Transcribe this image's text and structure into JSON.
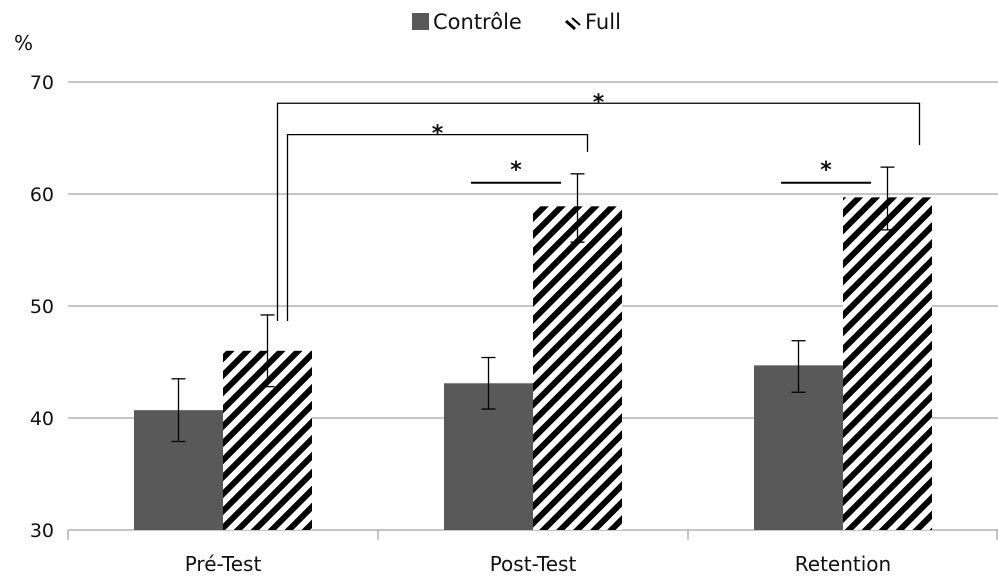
{
  "chart_data": {
    "type": "bar",
    "title": "",
    "xlabel": "",
    "ylabel": "%",
    "ylim": [
      30,
      70
    ],
    "yticks": [
      30,
      40,
      50,
      60,
      70
    ],
    "grid": true,
    "legend_position": "top-center",
    "categories": [
      "Pré-Test",
      "Post-Test",
      "Retention"
    ],
    "series": [
      {
        "name": "Contrôle",
        "pattern": "solid",
        "color": "#595959",
        "values": [
          40.7,
          43.1,
          44.7
        ],
        "err_low": [
          37.9,
          40.8,
          42.3
        ],
        "err_high": [
          43.5,
          45.4,
          46.9
        ]
      },
      {
        "name": "Full",
        "pattern": "diagonal-hatch",
        "color": "#000000",
        "values": [
          46.0,
          58.9,
          59.7
        ],
        "err_low": [
          42.8,
          55.7,
          56.8
        ],
        "err_high": [
          49.2,
          61.8,
          62.4
        ]
      }
    ],
    "significance": [
      {
        "type": "bracket",
        "from": {
          "category": 0,
          "series": 1
        },
        "to": {
          "category": 2,
          "series": 1
        },
        "y": 68.1,
        "label": "*"
      },
      {
        "type": "bracket",
        "from": {
          "category": 0,
          "series": 1
        },
        "to": {
          "category": 1,
          "series": 1
        },
        "y": 65.3,
        "label": "*"
      },
      {
        "type": "line",
        "category": 1,
        "y": 61.0,
        "label": "*"
      },
      {
        "type": "line",
        "category": 2,
        "y": 61.0,
        "label": "*"
      }
    ]
  }
}
